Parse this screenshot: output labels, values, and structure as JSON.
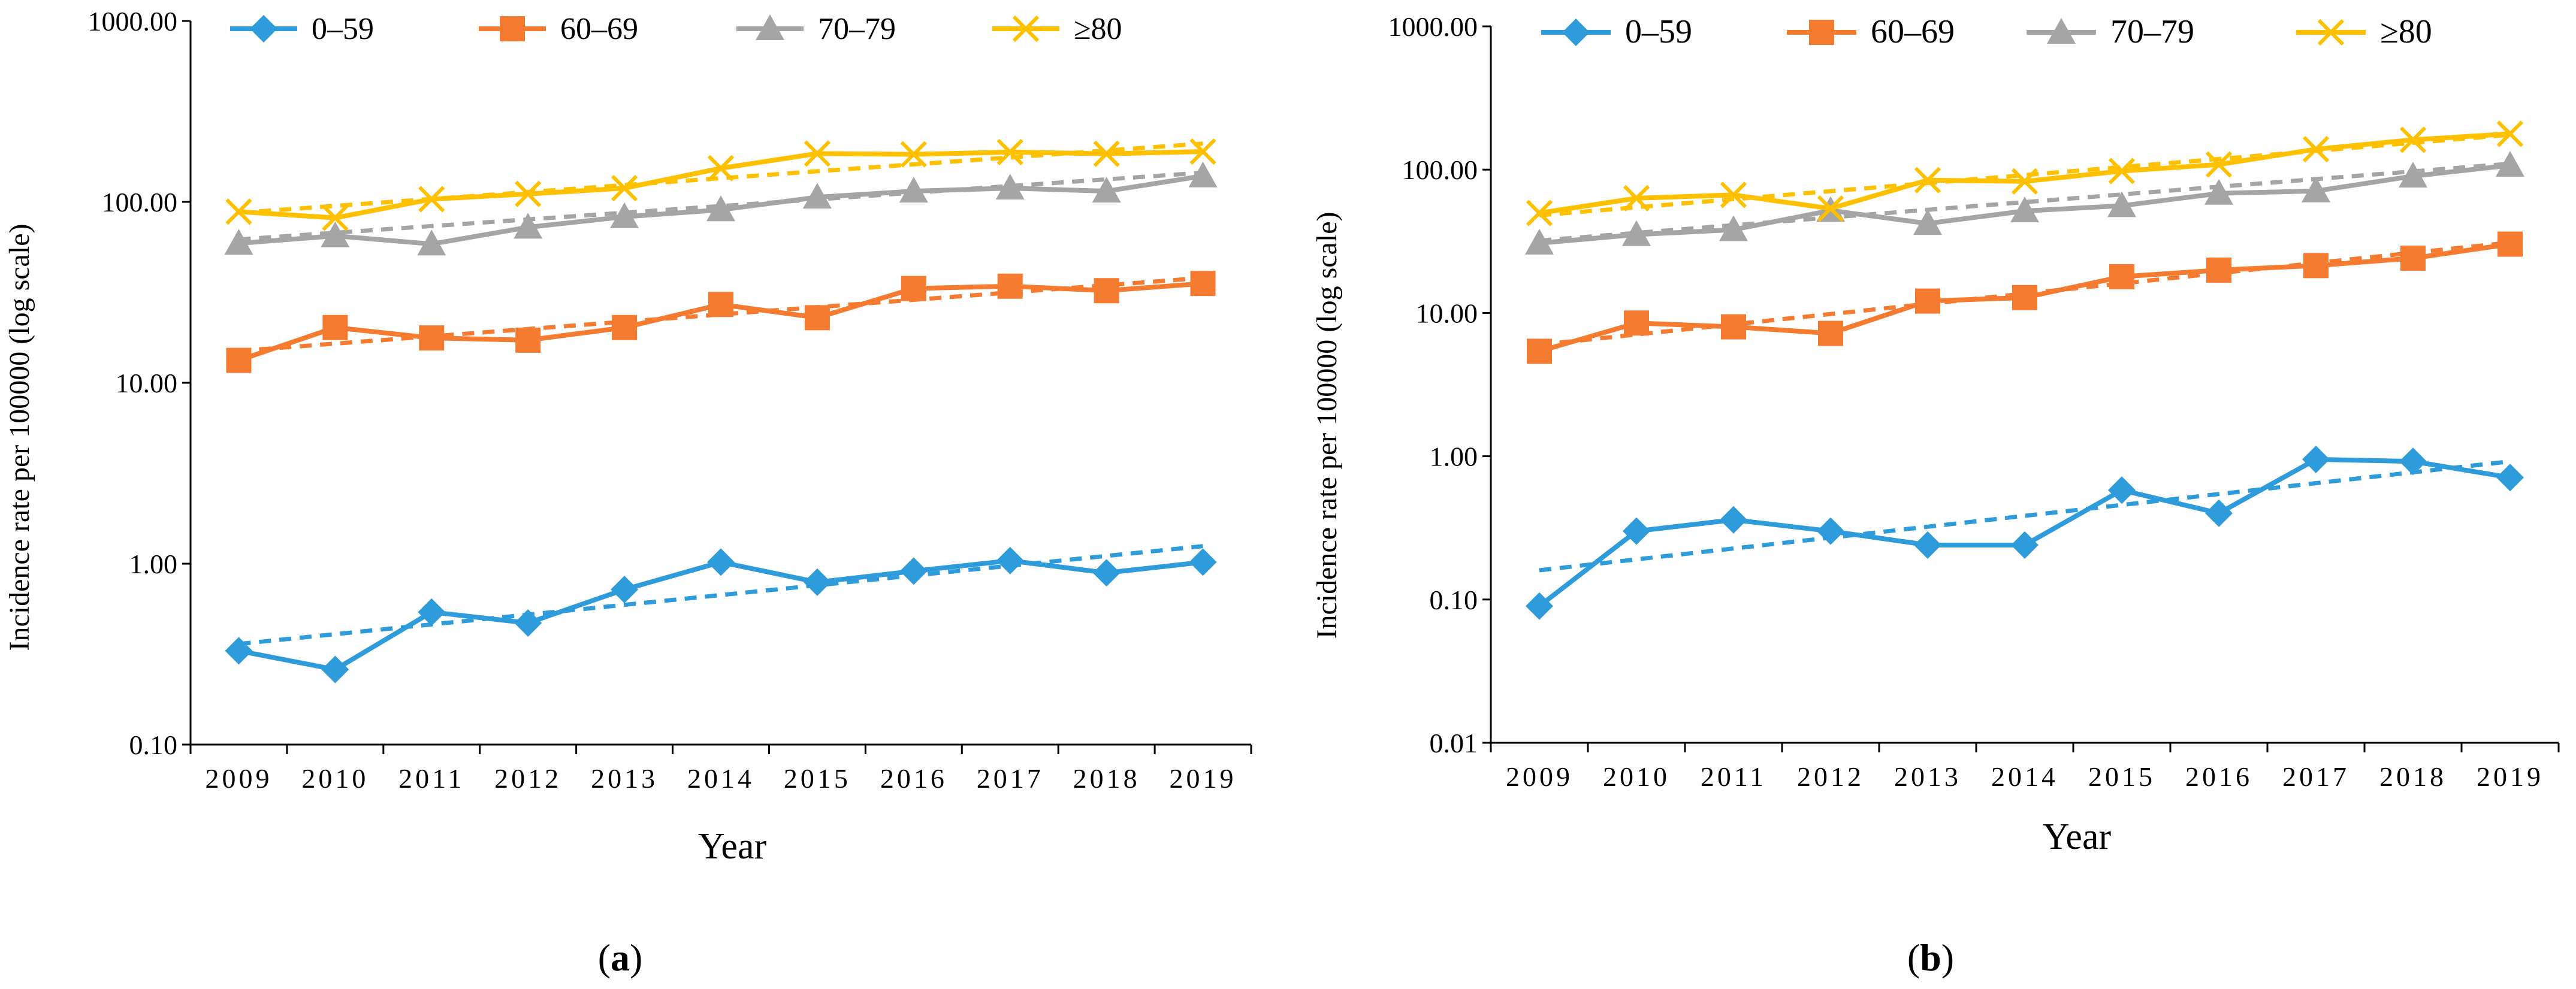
{
  "chart_data": [
    {
      "panel_label": "a",
      "type": "line",
      "title": "",
      "xlabel": "Year",
      "ylabel": "Incidence  rate per 100000 (log scale)",
      "yscale": "log",
      "ylim": [
        0.1,
        1000
      ],
      "y_ticks": [
        "0.10",
        "1.00",
        "10.00",
        "100.00",
        "1000.00"
      ],
      "categories": [
        "2009",
        "2010",
        "2011",
        "2012",
        "2013",
        "2014",
        "2015",
        "2016",
        "2017",
        "2018",
        "2019"
      ],
      "legend_position": "top",
      "series": [
        {
          "name": "0–59",
          "color": "#2E9BDB",
          "marker": "diamond",
          "values": [
            0.33,
            0.26,
            0.54,
            0.47,
            0.72,
            1.02,
            0.79,
            0.91,
            1.04,
            0.89,
            1.02
          ],
          "trend": [
            0.36,
            1.25
          ]
        },
        {
          "name": "60–69",
          "color": "#F47B30",
          "marker": "square",
          "values": [
            13.3,
            20.2,
            17.7,
            17.2,
            20.2,
            27.1,
            22.9,
            33.2,
            34.2,
            32.3,
            35.4
          ],
          "trend": [
            15.0,
            38.0
          ]
        },
        {
          "name": "70–79",
          "color": "#A5A5A5",
          "marker": "triangle",
          "values": [
            59.0,
            64.9,
            58.5,
            72.4,
            82.7,
            90.4,
            106.1,
            114.6,
            119.1,
            114.6,
            139.1
          ],
          "trend": [
            62.0,
            145.0
          ]
        },
        {
          "name": "≥80",
          "color": "#FFC000",
          "marker": "x",
          "values": [
            88.3,
            81.6,
            103.5,
            110.6,
            119.1,
            153.4,
            185.0,
            183.1,
            188.4,
            184.4,
            189.7
          ],
          "trend": [
            87.0,
            210.0
          ]
        }
      ]
    },
    {
      "panel_label": "b",
      "type": "line",
      "title": "",
      "xlabel": "Year",
      "ylabel": "Incidence  rate per 100000 (log scale)",
      "yscale": "log",
      "ylim": [
        0.01,
        1000
      ],
      "y_ticks": [
        "0.01",
        "0.10",
        "1.00",
        "10.00",
        "100.00",
        "1000.00"
      ],
      "categories": [
        "2009",
        "2010",
        "2011",
        "2012",
        "2013",
        "2014",
        "2015",
        "2016",
        "2017",
        "2018",
        "2019"
      ],
      "legend_position": "top",
      "series": [
        {
          "name": "0–59",
          "color": "#2E9BDB",
          "marker": "diamond",
          "values": [
            0.09,
            0.3,
            0.36,
            0.3,
            0.24,
            0.24,
            0.58,
            0.4,
            0.95,
            0.92,
            0.71
          ],
          "trend": [
            0.16,
            0.92
          ]
        },
        {
          "name": "60–69",
          "color": "#F47B30",
          "marker": "square",
          "values": [
            5.4,
            8.5,
            8.0,
            7.2,
            12.1,
            12.8,
            17.9,
            19.9,
            21.4,
            24.1,
            30.2
          ],
          "trend": [
            6.0,
            31.0
          ]
        },
        {
          "name": "70–79",
          "color": "#A5A5A5",
          "marker": "triangle",
          "values": [
            30.7,
            35.2,
            38.1,
            51.9,
            42.1,
            51.5,
            56.0,
            68.3,
            71.0,
            90.1,
            107.2
          ],
          "trend": [
            32.0,
            110.0
          ]
        },
        {
          "name": "≥80",
          "color": "#FFC000",
          "marker": "x",
          "values": [
            49.8,
            63.2,
            66.6,
            53.5,
            84.5,
            82.8,
            97.8,
            108.6,
            138.9,
            161.5,
            177.9
          ],
          "trend": [
            48.0,
            175.0
          ]
        }
      ]
    }
  ]
}
